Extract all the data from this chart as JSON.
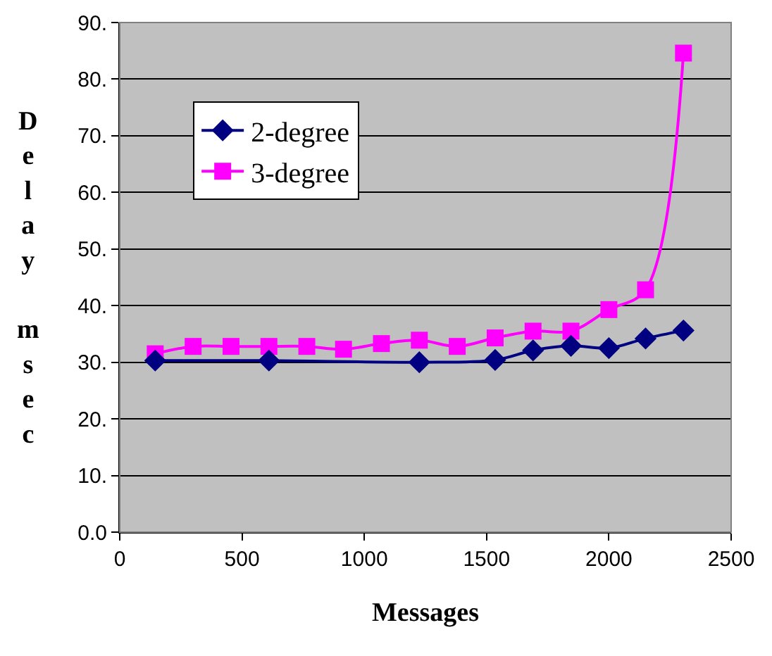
{
  "chart_data": {
    "type": "line",
    "xlabel": "Messages",
    "ylabel": "Delay msec",
    "xlim": [
      0,
      2500
    ],
    "xticks": [
      0,
      500,
      1000,
      1500,
      2000,
      2500
    ],
    "ylim": [
      0,
      90
    ],
    "yticks": [
      {
        "value": 0,
        "label": "0.0"
      },
      {
        "value": 10,
        "label": "10."
      },
      {
        "value": 20,
        "label": "20."
      },
      {
        "value": 30,
        "label": "30."
      },
      {
        "value": 40,
        "label": "40."
      },
      {
        "value": 50,
        "label": "50."
      },
      {
        "value": 60,
        "label": "60."
      },
      {
        "value": 70,
        "label": "70."
      },
      {
        "value": 80,
        "label": "80."
      },
      {
        "value": 90,
        "label": "90."
      }
    ],
    "grid": "y",
    "legend": "top left",
    "series": [
      {
        "name": "2-degree",
        "color": "#000080",
        "marker": "diamond",
        "x": [
          145,
          610,
          1225,
          1535,
          1690,
          1845,
          2000,
          2150,
          2305
        ],
        "values": [
          30.3,
          30.3,
          30.0,
          30.4,
          32.1,
          32.9,
          32.5,
          34.2,
          35.6
        ]
      },
      {
        "name": "3-degree",
        "color": "#ff00ff",
        "marker": "square",
        "x": [
          145,
          300,
          455,
          610,
          765,
          915,
          1070,
          1225,
          1380,
          1535,
          1690,
          1845,
          2000,
          2150,
          2305
        ],
        "values": [
          31.5,
          32.8,
          32.8,
          32.8,
          32.8,
          32.3,
          33.3,
          33.9,
          32.8,
          34.3,
          35.5,
          35.5,
          39.3,
          42.8,
          84.6
        ]
      }
    ]
  }
}
